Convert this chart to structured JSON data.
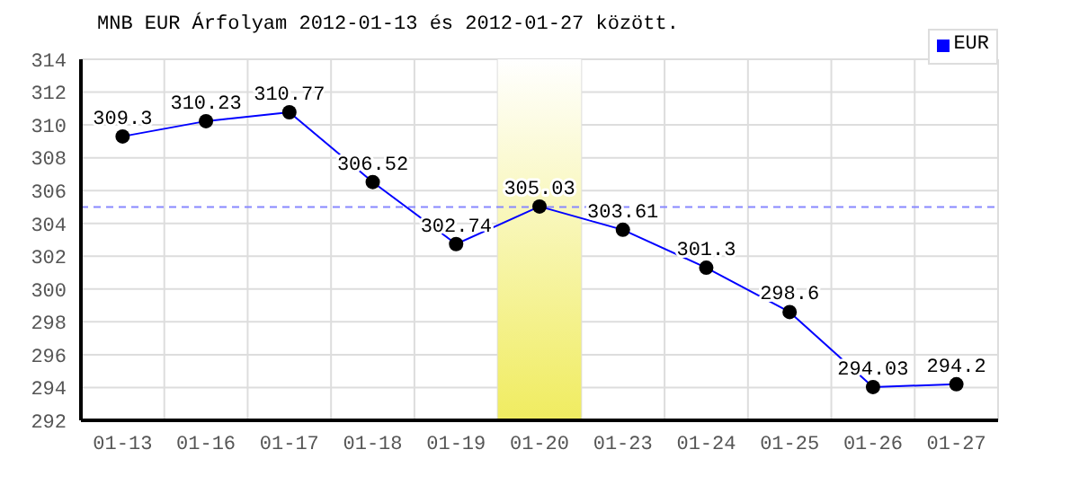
{
  "chart_data": {
    "type": "line",
    "title": "MNB EUR Árfolyam 2012-01-13 és 2012-01-27 között.",
    "categories": [
      "01-13",
      "01-16",
      "01-17",
      "01-18",
      "01-19",
      "01-20",
      "01-23",
      "01-24",
      "01-25",
      "01-26",
      "01-27"
    ],
    "series": [
      {
        "name": "EUR",
        "color": "#0000ff",
        "values": [
          309.3,
          310.23,
          310.77,
          306.52,
          302.74,
          305.03,
          303.61,
          301.3,
          298.6,
          294.03,
          294.2
        ]
      }
    ],
    "ylim": [
      292,
      314
    ],
    "yticks": [
      292,
      294,
      296,
      298,
      300,
      302,
      304,
      306,
      308,
      310,
      312,
      314
    ],
    "ref_lines": [
      {
        "axis": "y",
        "value": 305,
        "color": "#8888ff",
        "line_style": "dashed"
      }
    ],
    "bands": [
      {
        "axis": "x",
        "from": "01-20",
        "to": "01-20",
        "color": "#f0ec60"
      }
    ],
    "grid": true,
    "legend": "top right",
    "marker": "circle",
    "line_style": "solid",
    "data_labels": true
  }
}
